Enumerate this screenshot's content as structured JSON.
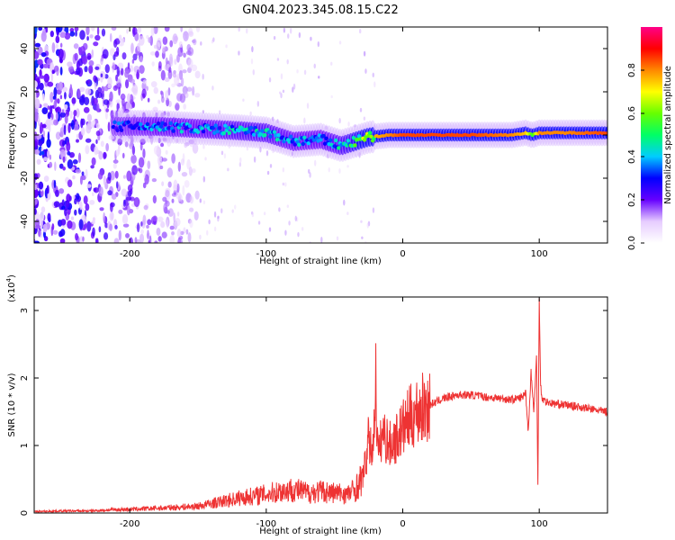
{
  "title": "GN04.2023.345.08.15.C22",
  "chart_data": [
    {
      "type": "heatmap",
      "title": "GN04.2023.345.08.15.C22",
      "xlabel": "Height of straight line (km)",
      "ylabel": "Frequency (Hz)",
      "xlim": [
        -270,
        150
      ],
      "ylim": [
        -50,
        50
      ],
      "x_ticks": [
        -200,
        -100,
        0,
        100
      ],
      "y_ticks": [
        -40,
        -20,
        0,
        20,
        40
      ],
      "colorbar": {
        "label": "Normalized spectral amplitude",
        "range": [
          0,
          1
        ],
        "ticks": [
          0,
          0.2,
          0.4,
          0.6,
          0.8
        ],
        "tick_labels": [
          "0.0",
          "0.2",
          "0.4",
          "0.6",
          "0.8"
        ],
        "colormap": [
          "#ffffff",
          "#e6ccff",
          "#6600ff",
          "#0000ff",
          "#00ccff",
          "#00ff66",
          "#66ff00",
          "#ffff00",
          "#ff8800",
          "#ff0000",
          "#ff0088"
        ]
      },
      "ridge": {
        "x": [
          -210,
          -180,
          -150,
          -120,
          -100,
          -80,
          -60,
          -45,
          -35,
          -25,
          -10,
          0,
          20,
          50,
          80,
          90,
          95,
          100,
          120,
          150
        ],
        "freq": [
          4,
          4,
          3,
          2,
          1,
          -3,
          -2,
          -5,
          -3,
          -1,
          0,
          0,
          0,
          0,
          0,
          1,
          0,
          1,
          1,
          1
        ],
        "amplitude": [
          0.35,
          0.4,
          0.4,
          0.45,
          0.45,
          0.4,
          0.4,
          0.45,
          0.55,
          0.75,
          0.8,
          0.85,
          0.85,
          0.85,
          0.8,
          0.75,
          0.55,
          0.8,
          0.8,
          0.85
        ]
      }
    },
    {
      "type": "line",
      "xlabel": "Height of straight line (km)",
      "ylabel": "SNR (10 * v/v)",
      "scale_label": "(x10",
      "scale_exp": "4",
      "scale_close": ")",
      "xlim": [
        -270,
        150
      ],
      "ylim": [
        0,
        3.2
      ],
      "x_ticks": [
        -200,
        -100,
        0,
        100
      ],
      "y_ticks": [
        0,
        1,
        2,
        3
      ],
      "color": "#ee3333",
      "x": [
        -270,
        -250,
        -230,
        -210,
        -190,
        -170,
        -150,
        -140,
        -130,
        -120,
        -110,
        -100,
        -90,
        -80,
        -70,
        -60,
        -50,
        -40,
        -35,
        -30,
        -27,
        -25,
        -23,
        -21,
        -20,
        -18,
        -15,
        -12,
        -10,
        -5,
        0,
        5,
        10,
        15,
        20,
        25,
        30,
        40,
        50,
        60,
        70,
        80,
        85,
        88,
        90,
        92,
        94,
        96,
        98,
        99,
        100,
        101,
        102,
        105,
        110,
        120,
        130,
        140,
        150
      ],
      "y": [
        0.02,
        0.03,
        0.03,
        0.05,
        0.06,
        0.08,
        0.1,
        0.14,
        0.18,
        0.22,
        0.25,
        0.28,
        0.32,
        0.35,
        0.3,
        0.32,
        0.3,
        0.28,
        0.35,
        0.5,
        0.75,
        1.1,
        0.9,
        1.2,
        2.1,
        0.8,
        1.2,
        1.1,
        1.0,
        1.1,
        1.25,
        1.4,
        1.5,
        1.55,
        1.6,
        1.65,
        1.7,
        1.75,
        1.75,
        1.72,
        1.7,
        1.68,
        1.7,
        1.72,
        1.8,
        1.2,
        2.1,
        1.5,
        2.3,
        0.4,
        3.2,
        1.9,
        1.7,
        1.65,
        1.62,
        1.6,
        1.57,
        1.53,
        1.5
      ]
    }
  ]
}
